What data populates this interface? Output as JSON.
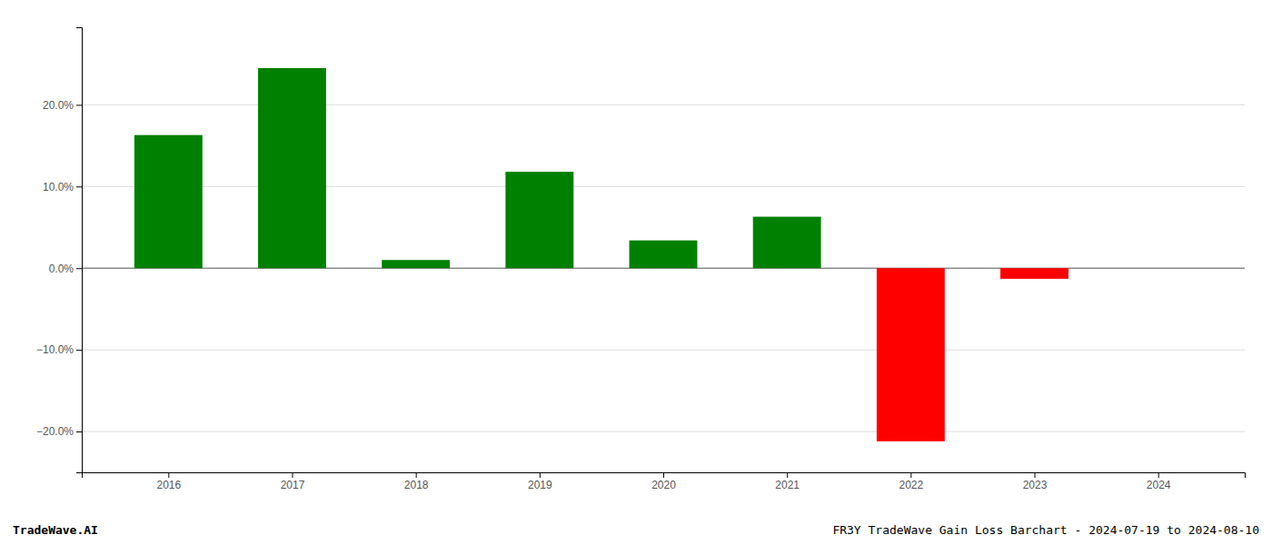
{
  "chart_data": {
    "type": "bar",
    "x": [
      2016,
      2017,
      2018,
      2019,
      2020,
      2021,
      2022,
      2023,
      2024
    ],
    "values": [
      0.163,
      0.245,
      0.01,
      0.118,
      0.034,
      0.063,
      -0.212,
      -0.013,
      0.0
    ],
    "colors": [
      "#008000",
      "#008000",
      "#008000",
      "#008000",
      "#008000",
      "#008000",
      "#ff0000",
      "#ff0000",
      null
    ],
    "xlim": [
      2015.3,
      2024.7
    ],
    "xticks": [
      2016,
      2017,
      2018,
      2019,
      2020,
      2021,
      2022,
      2023,
      2024
    ],
    "ylim": [
      -0.25,
      0.295
    ],
    "yticks": [
      {
        "value": -0.2,
        "label": "−20.0%"
      },
      {
        "value": -0.1,
        "label": "−10.0%"
      },
      {
        "value": 0.0,
        "label": "0.0%"
      },
      {
        "value": 0.1,
        "label": "10.0%"
      },
      {
        "value": 0.2,
        "label": "20.0%"
      }
    ],
    "grid": true,
    "annotations": [
      "TradeWave.AI",
      "FR3Y TradeWave Gain Loss Barchart - 2024-07-19 to 2024-08-10"
    ]
  }
}
